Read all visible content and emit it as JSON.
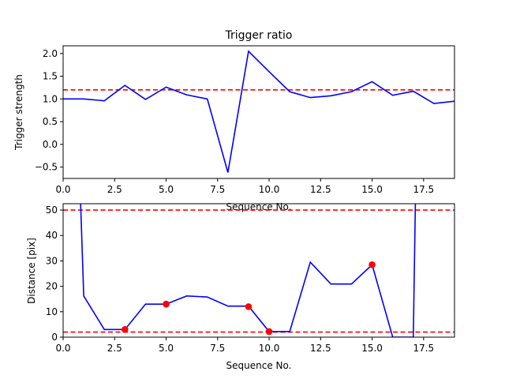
{
  "chart_data": [
    {
      "type": "line",
      "title": "Trigger ratio",
      "xlabel": "Sequence No.",
      "ylabel": "Trigger strength",
      "xlim": [
        0,
        19
      ],
      "ylim": [
        -0.75,
        2.17
      ],
      "xticks": [
        0,
        2.5,
        5,
        7.5,
        10,
        12.5,
        15,
        17.5
      ],
      "xtick_labels": [
        "0.0",
        "2.5",
        "5.0",
        "7.5",
        "10.0",
        "12.5",
        "15.0",
        "17.5"
      ],
      "yticks": [
        -0.5,
        0,
        0.5,
        1,
        1.5,
        2
      ],
      "ytick_labels": [
        "−0.5",
        "0.0",
        "0.5",
        "1.0",
        "1.5",
        "2.0"
      ],
      "series": [
        {
          "color": "#0000ff",
          "x": [
            0,
            1,
            2,
            3,
            4,
            5,
            6,
            7,
            8,
            9,
            10,
            11,
            12,
            13,
            14,
            15,
            16,
            17,
            18,
            19
          ],
          "y": [
            1.0,
            1.0,
            0.96,
            1.3,
            0.99,
            1.26,
            1.09,
            1.0,
            -0.62,
            2.05,
            1.6,
            1.16,
            1.03,
            1.07,
            1.16,
            1.38,
            1.08,
            1.17,
            0.9,
            0.95
          ]
        }
      ],
      "hlines": [
        {
          "y": 1.2,
          "color": "#ff0000",
          "style": "dashed"
        }
      ],
      "grid": false
    },
    {
      "type": "line",
      "title": "",
      "xlabel": "Sequence No.",
      "ylabel": "Distance [pix]",
      "xlim": [
        0,
        19
      ],
      "ylim": [
        0,
        52.5
      ],
      "xticks": [
        0,
        2.5,
        5,
        7.5,
        10,
        12.5,
        15,
        17.5
      ],
      "xtick_labels": [
        "0.0",
        "2.5",
        "5.0",
        "7.5",
        "10.0",
        "12.5",
        "15.0",
        "17.5"
      ],
      "yticks": [
        0,
        10,
        20,
        30,
        40,
        50
      ],
      "ytick_labels": [
        "0",
        "10",
        "20",
        "30",
        "40",
        "50"
      ],
      "series": [
        {
          "color": "#0000ff",
          "x": [
            0.85,
            1,
            2,
            3,
            4,
            5,
            6,
            7,
            8,
            9,
            10,
            11,
            12,
            13,
            14,
            15,
            16,
            17,
            17.1
          ],
          "y": [
            52.5,
            16.2,
            3.0,
            3.0,
            13.0,
            13.0,
            16.2,
            15.8,
            12.2,
            12.2,
            2.2,
            2.2,
            29.5,
            20.9,
            20.9,
            28.5,
            0.0,
            0.0,
            52.5
          ]
        }
      ],
      "markers": {
        "color": "#ff0000",
        "x": [
          3,
          5,
          9,
          10,
          15
        ],
        "y": [
          3.0,
          13.0,
          12.0,
          2.2,
          28.5
        ]
      },
      "hlines": [
        {
          "y": 50,
          "color": "#ff0000",
          "style": "dashed"
        },
        {
          "y": 2,
          "color": "#ff0000",
          "style": "dashed"
        }
      ],
      "grid": false
    }
  ]
}
